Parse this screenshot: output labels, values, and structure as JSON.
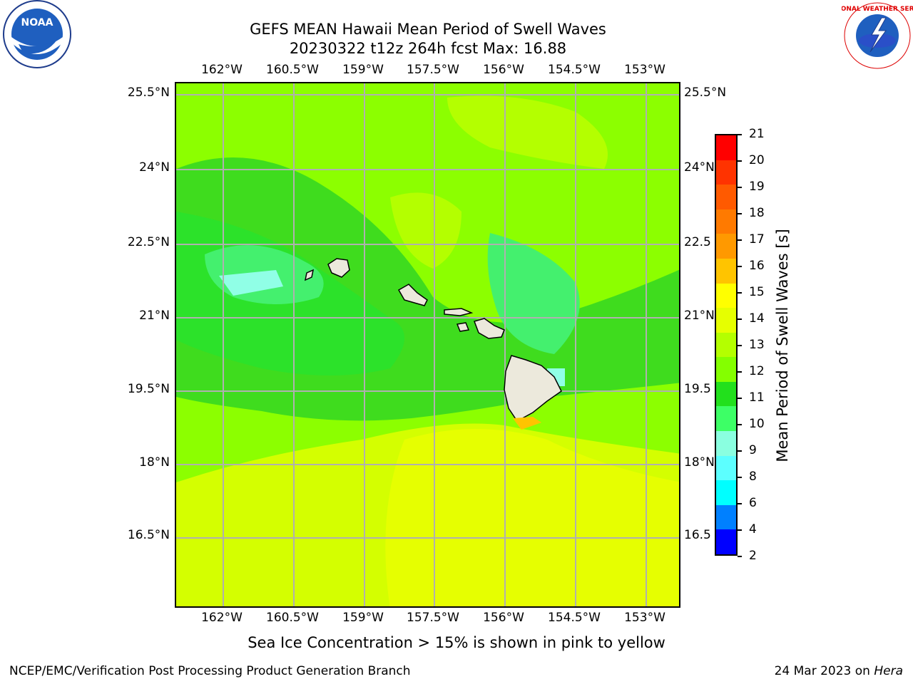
{
  "header": {
    "title_line1": "GEFS MEAN Hawaii Mean Period of Swell Waves",
    "title_line2": "20230322 t12z 264h fcst   Max: 16.88"
  },
  "logos": {
    "left": {
      "icon": "noaa-logo-icon",
      "text": "NOAA"
    },
    "right": {
      "icon": "nws-logo-icon",
      "text": "NATIONAL WEATHER SERVICE"
    }
  },
  "map": {
    "lon_ticks": [
      "162°W",
      "160.5°W",
      "159°W",
      "157.5°W",
      "156°W",
      "154.5°W",
      "153°W"
    ],
    "lat_ticks_left": [
      "25.5°N",
      "24°N",
      "22.5°N",
      "21°N",
      "19.5°N",
      "18°N",
      "16.5°N"
    ],
    "lat_ticks_right": [
      "25.5°N",
      "24°N",
      "22.5",
      "21°N",
      "19.5",
      "18°N",
      "16.5"
    ],
    "grid": true,
    "land_color": "#ece9dc"
  },
  "colorbar": {
    "label": "Mean Period of Swell Waves [s]",
    "ticks": [
      "21",
      "20",
      "19",
      "18",
      "17",
      "16",
      "15",
      "14",
      "13",
      "12",
      "11",
      "10",
      "9",
      "8",
      "6",
      "4",
      "2"
    ],
    "colors_top_to_bottom": [
      "#ff0000",
      "#ff3300",
      "#ff5a00",
      "#ff7a00",
      "#ff9900",
      "#ffc400",
      "#ffff00",
      "#e6ff00",
      "#b4ff00",
      "#84ff00",
      "#22e01c",
      "#3dff66",
      "#8affe0",
      "#5cffff",
      "#00ffff",
      "#0080ff",
      "#0000ff"
    ]
  },
  "note": "Sea Ice Concentration > 15% is shown in pink to yellow",
  "footer": {
    "left": "NCEP/EMC/Verification Post Processing Product Generation Branch",
    "right_date": "24 Mar 2023 on ",
    "right_host": "Hera"
  }
}
